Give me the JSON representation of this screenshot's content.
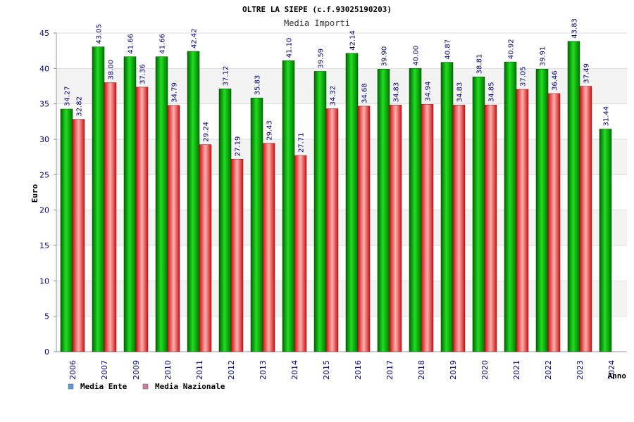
{
  "chart_data": {
    "type": "bar",
    "title": "OLTRE LA SIEPE (c.f.93025190203)",
    "subtitle": "Media Importi",
    "xlabel": "Anno",
    "ylabel": "Euro",
    "ylim": [
      0,
      45
    ],
    "yticks": [
      "0",
      "5",
      "10",
      "15",
      "20",
      "25",
      "30",
      "35",
      "40",
      "45"
    ],
    "grid": true,
    "legend_position": "bottom-left",
    "categories": [
      "2006",
      "2007",
      "2009",
      "2010",
      "2011",
      "2012",
      "2013",
      "2014",
      "2015",
      "2016",
      "2017",
      "2018",
      "2019",
      "2020",
      "2021",
      "2022",
      "2023",
      "2024"
    ],
    "series": [
      {
        "name": "Media Ente",
        "color": "#00bb00",
        "values": [
          34.27,
          43.05,
          41.66,
          41.66,
          42.42,
          37.12,
          35.83,
          41.1,
          39.59,
          42.14,
          39.9,
          40.0,
          40.87,
          38.81,
          40.92,
          39.91,
          43.83,
          31.44
        ],
        "labels": [
          "34.27",
          "43.05",
          "41.66",
          "41.66",
          "42.42",
          "37.12",
          "35.83",
          "41.10",
          "39.59",
          "42.14",
          "39.90",
          "40.00",
          "40.87",
          "38.81",
          "40.92",
          "39.91",
          "43.83",
          "31.44"
        ]
      },
      {
        "name": "Media Nazionale",
        "color": "#ee2222",
        "values": [
          32.82,
          38.0,
          37.36,
          34.79,
          29.24,
          27.19,
          29.43,
          27.71,
          34.32,
          34.68,
          34.83,
          34.94,
          34.83,
          34.85,
          37.05,
          36.46,
          37.49,
          null
        ],
        "labels": [
          "32.82",
          "38.00",
          "37.36",
          "34.79",
          "29.24",
          "27.19",
          "29.43",
          "27.71",
          "34.32",
          "34.68",
          "34.83",
          "34.94",
          "34.83",
          "34.85",
          "37.05",
          "36.46",
          "37.49",
          null
        ]
      }
    ],
    "legend": [
      {
        "label": "Media Ente",
        "swatch": "#5a9bd8"
      },
      {
        "label": "Media Nazionale",
        "swatch": "#d87aa8"
      }
    ]
  }
}
